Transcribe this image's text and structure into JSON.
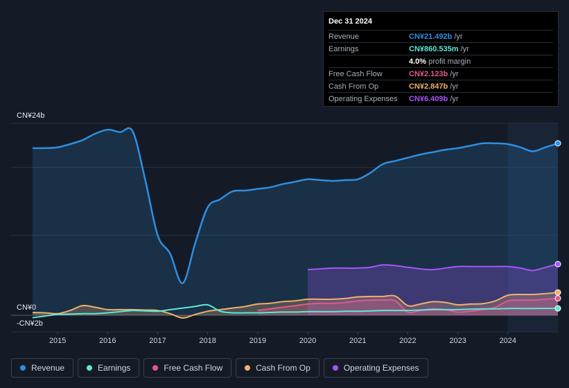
{
  "tooltip": {
    "date": "Dec 31 2024",
    "rows": [
      {
        "label": "Revenue",
        "value": "CN¥21.492b",
        "unit": "/yr",
        "color": "#2e8fe0"
      },
      {
        "label": "Earnings",
        "value": "CN¥860.535m",
        "unit": "/yr",
        "color": "#5ee8d6"
      },
      {
        "label": "",
        "value": "4.0%",
        "unit": "profit margin",
        "color": "#ffffff"
      },
      {
        "label": "Free Cash Flow",
        "value": "CN¥2.123b",
        "unit": "/yr",
        "color": "#e05a8f"
      },
      {
        "label": "Cash From Op",
        "value": "CN¥2.847b",
        "unit": "/yr",
        "color": "#f0b06a"
      },
      {
        "label": "Operating Expenses",
        "value": "CN¥6.409b",
        "unit": "/yr",
        "color": "#a855f7"
      }
    ]
  },
  "legend": [
    {
      "label": "Revenue",
      "color": "#2e8fe0"
    },
    {
      "label": "Earnings",
      "color": "#5ee8d6"
    },
    {
      "label": "Free Cash Flow",
      "color": "#e05a8f"
    },
    {
      "label": "Cash From Op",
      "color": "#f0b06a"
    },
    {
      "label": "Operating Expenses",
      "color": "#a855f7"
    }
  ],
  "chart_data": {
    "type": "area",
    "ylabels": {
      "top": "CN¥24b",
      "zero": "CN¥0",
      "bottom": "-CN¥2b"
    },
    "ylim": [
      -2,
      24
    ],
    "xticks": [
      "2015",
      "2016",
      "2017",
      "2018",
      "2019",
      "2020",
      "2021",
      "2022",
      "2023",
      "2024"
    ],
    "xlim": [
      2014.5,
      2025.0
    ],
    "forecast_start": 2024.0,
    "series": [
      {
        "name": "Revenue",
        "color": "#2e8fe0",
        "fill": true,
        "points": [
          [
            2014.5,
            20.9
          ],
          [
            2014.75,
            20.9
          ],
          [
            2015.0,
            21.0
          ],
          [
            2015.25,
            21.4
          ],
          [
            2015.5,
            21.9
          ],
          [
            2015.75,
            22.7
          ],
          [
            2016.0,
            23.2
          ],
          [
            2016.25,
            22.9
          ],
          [
            2016.5,
            23.0
          ],
          [
            2016.75,
            17.0
          ],
          [
            2017.0,
            10.0
          ],
          [
            2017.25,
            7.7
          ],
          [
            2017.5,
            4.0
          ],
          [
            2017.75,
            9.0
          ],
          [
            2018.0,
            13.5
          ],
          [
            2018.25,
            14.5
          ],
          [
            2018.5,
            15.5
          ],
          [
            2018.75,
            15.6
          ],
          [
            2019.0,
            15.8
          ],
          [
            2019.25,
            16.0
          ],
          [
            2019.5,
            16.4
          ],
          [
            2019.75,
            16.7
          ],
          [
            2020.0,
            17.0
          ],
          [
            2020.25,
            16.9
          ],
          [
            2020.5,
            16.8
          ],
          [
            2020.75,
            16.9
          ],
          [
            2021.0,
            17.0
          ],
          [
            2021.25,
            17.8
          ],
          [
            2021.5,
            18.9
          ],
          [
            2021.75,
            19.3
          ],
          [
            2022.0,
            19.7
          ],
          [
            2022.25,
            20.1
          ],
          [
            2022.5,
            20.4
          ],
          [
            2022.75,
            20.7
          ],
          [
            2023.0,
            20.9
          ],
          [
            2023.25,
            21.2
          ],
          [
            2023.5,
            21.5
          ],
          [
            2023.75,
            21.5
          ],
          [
            2024.0,
            21.4
          ],
          [
            2024.25,
            21.0
          ],
          [
            2024.5,
            20.5
          ],
          [
            2024.75,
            21.0
          ],
          [
            2025.0,
            21.5
          ]
        ]
      },
      {
        "name": "Operating Expenses",
        "color": "#a855f7",
        "fill": true,
        "points": [
          [
            2020.0,
            5.7
          ],
          [
            2020.25,
            5.8
          ],
          [
            2020.5,
            5.9
          ],
          [
            2020.75,
            5.9
          ],
          [
            2021.0,
            5.9
          ],
          [
            2021.25,
            6.0
          ],
          [
            2021.5,
            6.3
          ],
          [
            2021.75,
            6.2
          ],
          [
            2022.0,
            6.0
          ],
          [
            2022.25,
            5.8
          ],
          [
            2022.5,
            5.7
          ],
          [
            2022.75,
            5.9
          ],
          [
            2023.0,
            6.1
          ],
          [
            2023.25,
            6.1
          ],
          [
            2023.5,
            6.1
          ],
          [
            2023.75,
            6.1
          ],
          [
            2024.0,
            6.1
          ],
          [
            2024.25,
            5.9
          ],
          [
            2024.5,
            5.6
          ],
          [
            2024.75,
            6.0
          ],
          [
            2025.0,
            6.4
          ]
        ]
      },
      {
        "name": "Cash From Op",
        "color": "#f0b06a",
        "fill": true,
        "points": [
          [
            2014.5,
            0.35
          ],
          [
            2014.75,
            0.3
          ],
          [
            2015.0,
            0.2
          ],
          [
            2015.25,
            0.6
          ],
          [
            2015.5,
            1.2
          ],
          [
            2015.75,
            1.0
          ],
          [
            2016.0,
            0.7
          ],
          [
            2016.25,
            0.7
          ],
          [
            2016.5,
            0.7
          ],
          [
            2016.75,
            0.65
          ],
          [
            2017.0,
            0.6
          ],
          [
            2017.25,
            0.2
          ],
          [
            2017.5,
            -0.35
          ],
          [
            2017.75,
            0.1
          ],
          [
            2018.0,
            0.5
          ],
          [
            2018.25,
            0.7
          ],
          [
            2018.5,
            0.9
          ],
          [
            2018.75,
            1.1
          ],
          [
            2019.0,
            1.4
          ],
          [
            2019.25,
            1.5
          ],
          [
            2019.5,
            1.7
          ],
          [
            2019.75,
            1.8
          ],
          [
            2020.0,
            2.0
          ],
          [
            2020.25,
            2.0
          ],
          [
            2020.5,
            2.0
          ],
          [
            2020.75,
            2.1
          ],
          [
            2021.0,
            2.3
          ],
          [
            2021.25,
            2.35
          ],
          [
            2021.5,
            2.35
          ],
          [
            2021.75,
            2.4
          ],
          [
            2022.0,
            1.2
          ],
          [
            2022.25,
            1.4
          ],
          [
            2022.5,
            1.7
          ],
          [
            2022.75,
            1.6
          ],
          [
            2023.0,
            1.3
          ],
          [
            2023.25,
            1.4
          ],
          [
            2023.5,
            1.45
          ],
          [
            2023.75,
            1.8
          ],
          [
            2024.0,
            2.5
          ],
          [
            2024.25,
            2.6
          ],
          [
            2024.5,
            2.6
          ],
          [
            2024.75,
            2.7
          ],
          [
            2025.0,
            2.85
          ]
        ]
      },
      {
        "name": "Free Cash Flow",
        "color": "#e05a8f",
        "fill": true,
        "points": [
          [
            2019.0,
            0.6
          ],
          [
            2019.25,
            0.8
          ],
          [
            2019.5,
            1.0
          ],
          [
            2019.75,
            1.2
          ],
          [
            2020.0,
            1.4
          ],
          [
            2020.25,
            1.5
          ],
          [
            2020.5,
            1.5
          ],
          [
            2020.75,
            1.6
          ],
          [
            2021.0,
            1.8
          ],
          [
            2021.25,
            1.9
          ],
          [
            2021.5,
            1.9
          ],
          [
            2021.75,
            1.8
          ],
          [
            2022.0,
            0.4
          ],
          [
            2022.25,
            0.6
          ],
          [
            2022.5,
            0.8
          ],
          [
            2022.75,
            0.7
          ],
          [
            2023.0,
            0.4
          ],
          [
            2023.25,
            0.5
          ],
          [
            2023.5,
            0.7
          ],
          [
            2023.75,
            1.0
          ],
          [
            2024.0,
            1.8
          ],
          [
            2024.25,
            1.9
          ],
          [
            2024.5,
            1.9
          ],
          [
            2024.75,
            2.0
          ],
          [
            2025.0,
            2.12
          ]
        ]
      },
      {
        "name": "Earnings",
        "color": "#5ee8d6",
        "fill": false,
        "points": [
          [
            2014.5,
            -0.3
          ],
          [
            2014.75,
            -0.1
          ],
          [
            2015.0,
            0.1
          ],
          [
            2015.25,
            0.15
          ],
          [
            2015.5,
            0.2
          ],
          [
            2015.75,
            0.2
          ],
          [
            2016.0,
            0.3
          ],
          [
            2016.25,
            0.45
          ],
          [
            2016.5,
            0.6
          ],
          [
            2016.75,
            0.55
          ],
          [
            2017.0,
            0.5
          ],
          [
            2017.25,
            0.7
          ],
          [
            2017.5,
            0.9
          ],
          [
            2017.75,
            1.1
          ],
          [
            2018.0,
            1.3
          ],
          [
            2018.25,
            0.5
          ],
          [
            2018.5,
            0.3
          ],
          [
            2018.75,
            0.3
          ],
          [
            2019.0,
            0.3
          ],
          [
            2019.25,
            0.35
          ],
          [
            2019.5,
            0.4
          ],
          [
            2019.75,
            0.4
          ],
          [
            2020.0,
            0.45
          ],
          [
            2020.25,
            0.45
          ],
          [
            2020.5,
            0.45
          ],
          [
            2020.75,
            0.5
          ],
          [
            2021.0,
            0.5
          ],
          [
            2021.25,
            0.55
          ],
          [
            2021.5,
            0.6
          ],
          [
            2021.75,
            0.6
          ],
          [
            2022.0,
            0.6
          ],
          [
            2022.25,
            0.65
          ],
          [
            2022.5,
            0.7
          ],
          [
            2022.75,
            0.7
          ],
          [
            2023.0,
            0.7
          ],
          [
            2023.25,
            0.75
          ],
          [
            2023.5,
            0.8
          ],
          [
            2023.75,
            0.8
          ],
          [
            2024.0,
            0.85
          ],
          [
            2024.25,
            0.85
          ],
          [
            2024.5,
            0.85
          ],
          [
            2024.75,
            0.86
          ],
          [
            2025.0,
            0.86
          ]
        ]
      }
    ]
  }
}
